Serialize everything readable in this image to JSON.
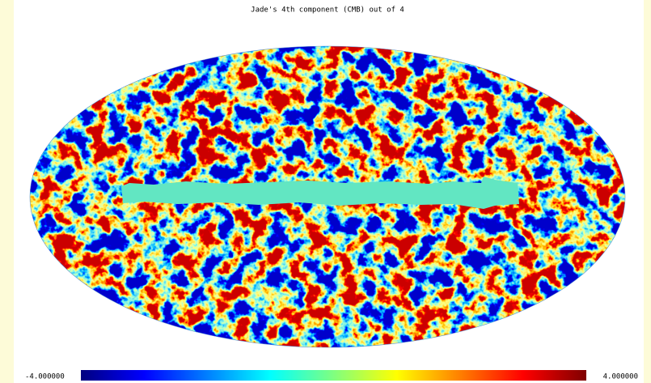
{
  "title": "Jade's 4th component (CMB) out of 4",
  "colorbar": {
    "min_label": "-4.000000",
    "max_label": "4.000000"
  }
}
